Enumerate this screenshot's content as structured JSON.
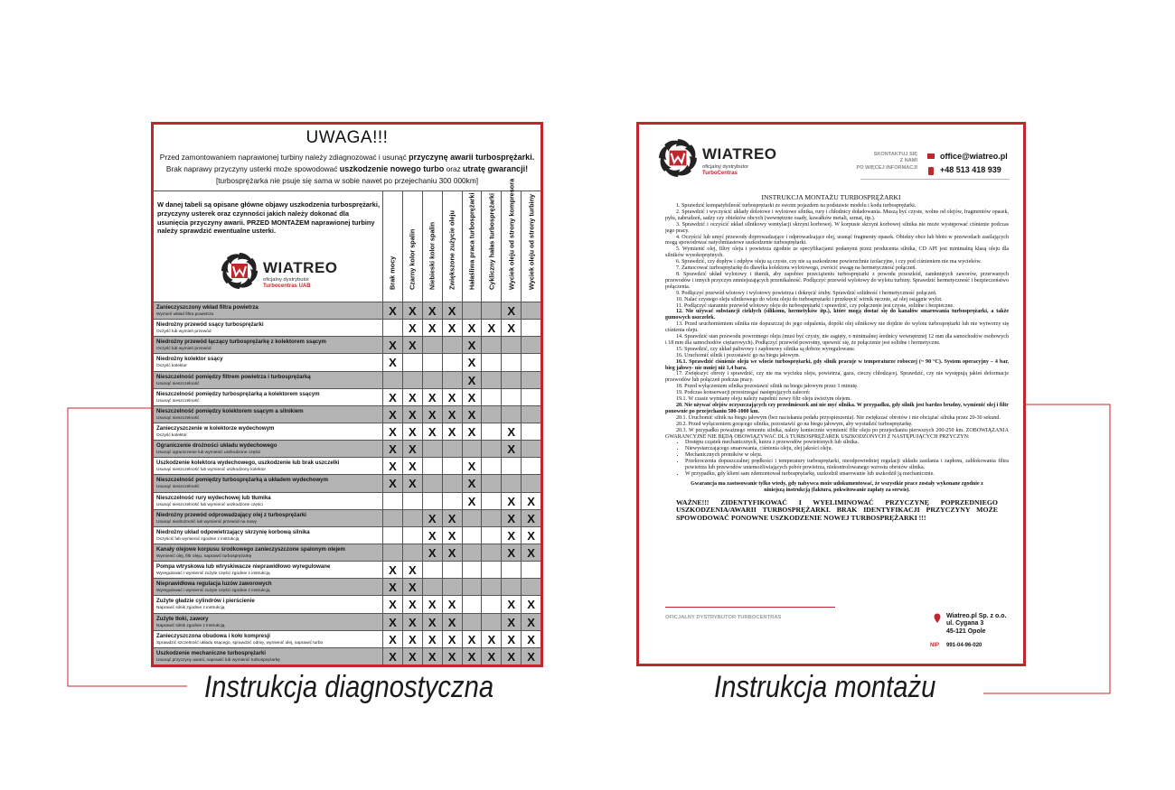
{
  "left_document": {
    "title": "UWAGA!!!",
    "intro": [
      [
        {
          "text": "Przed zamontowaniem naprawionej turbiny należy zdiagnozować i usunąć",
          "bold": false
        },
        {
          "text": "przyczynę awarii turbosprężarki.",
          "bold": true
        }
      ],
      [
        {
          "text": "Brak naprawy przyczyny usterki może spowodować",
          "bold": false
        },
        {
          "text": "uszkodzenie nowego turbo",
          "bold": true
        },
        {
          "text": "oraz",
          "bold": false
        },
        {
          "text": "utratę gwarancji!",
          "bold": true
        }
      ],
      [
        {
          "text": "[turbosprężarka nie psuje się sama w sobie nawet po przejechaniu 300 000km]",
          "bold": false
        }
      ]
    ],
    "description": "W danej tabeli są opisane główne objawy uszkodzenia turbosprężarki, przyczyny usterek oraz czynności jakich należy dokonać dla usunięcia przyczyny awarii. PRZED MONTAŻEM naprawionej turbiny należy sprawdzić ewentualne usterki.",
    "logo": {
      "name": "WIATREO",
      "tagline": "oficjalny dystrybutor",
      "company": "Turbocentras UAB"
    },
    "table": {
      "columns": [
        "Brak mocy",
        "Czarny kolor spalin",
        "Niebieski kolor spalin",
        "Zwiększone zużycie oleju",
        "Hałaśliwa praca turbosprężarki",
        "Cykliczny hałas turbosprężarki",
        "Wyciek oleju od strony kompresora",
        "Wyciek oleju od strony turbiny"
      ],
      "rows": [
        {
          "cause": "Zanieczyszczony wkład filtra powietrza",
          "remedy": "Wymień wkład filtra powietrza",
          "cells": [
            "X",
            "X",
            "X",
            "X",
            null,
            null,
            "X",
            null
          ]
        },
        {
          "cause": "Niedrożny przewód ssący turbosprężarki",
          "remedy": "Oczyść lub wymień przewód",
          "cells": [
            null,
            "X",
            "X",
            "X",
            "X",
            "X",
            "X",
            null
          ]
        },
        {
          "cause": "Niedrożny przewód łączący turbosprężarkę z kolektorem ssącym",
          "remedy": "Oczyść lub wymień przewód",
          "cells": [
            "X",
            "X",
            null,
            null,
            "X",
            null,
            null,
            null
          ]
        },
        {
          "cause": "Niedrożny kolektor ssący",
          "remedy": "Oczyść kolektor",
          "cells": [
            "X",
            null,
            null,
            null,
            "X",
            null,
            null,
            null
          ]
        },
        {
          "cause": "Nieszczelność pomiędzy filtrem powietrza i turbosprężarką",
          "remedy": "Usunąć nieszczelność",
          "cells": [
            null,
            null,
            null,
            null,
            "X",
            null,
            null,
            null
          ]
        },
        {
          "cause": "Nieszczelność pomiędzy turbosprężarką a kolektorem ssącym",
          "remedy": "Usunąć nieszczelność",
          "cells": [
            "X",
            "X",
            "X",
            "X",
            "X",
            null,
            null,
            null
          ]
        },
        {
          "cause": "Nieszczelność pomiędzy kolektorem ssącym a silnikiem",
          "remedy": "Usunąć nieszczelność",
          "cells": [
            "X",
            "X",
            "X",
            "X",
            "X",
            null,
            null,
            null
          ]
        },
        {
          "cause": "Zanieczyszczenie w kolektorze wydechowym",
          "remedy": "Oczyść kolektor",
          "cells": [
            "X",
            "X",
            "X",
            "X",
            "X",
            null,
            "X",
            null
          ]
        },
        {
          "cause": "Ograniczenie drożności układu wydechowego",
          "remedy": "Usunąć ograniczenie lub wymienić uszkodzone części",
          "cells": [
            "X",
            "X",
            null,
            null,
            null,
            null,
            "X",
            null
          ]
        },
        {
          "cause": "Uszkodzenie kolektora wydechowego, uszkodzenie lub brak uszczelki",
          "remedy": "Usunąć nieszczelność lub wymienić uszkodzony kolektor",
          "cells": [
            "X",
            "X",
            null,
            null,
            "X",
            null,
            null,
            null
          ]
        },
        {
          "cause": "Nieszczelność pomiędzy turbosprężarką a układem wydechowym",
          "remedy": "Usunąć nieszczelność",
          "cells": [
            "X",
            "X",
            null,
            null,
            "X",
            null,
            null,
            null
          ]
        },
        {
          "cause": "Nieszczelność rury wydechowej lub tłumika",
          "remedy": "Usunąć nieszczelność lub wymienić uszkodzone części",
          "cells": [
            null,
            null,
            null,
            null,
            "X",
            null,
            "X",
            "X"
          ]
        },
        {
          "cause": "Niedrożny przewód odprowadzający olej z turbosprężarki",
          "remedy": "Usunąć niedrożność lub wymienić przewód na nowy",
          "cells": [
            null,
            null,
            "X",
            "X",
            null,
            null,
            "X",
            "X"
          ]
        },
        {
          "cause": "Niedrożny układ odpowietrzający skrzynię korbową silnika",
          "remedy": "Oczyścić lub wymienić zgodnie z instrukcją",
          "cells": [
            null,
            null,
            "X",
            "X",
            null,
            null,
            "X",
            "X"
          ]
        },
        {
          "cause": "Kanały olejowe korpusu środkowego zanieczyszczone spalonym olejem",
          "remedy": "Wymienić olej, filtr oleju, naprawić turbosprężarkę",
          "cells": [
            null,
            null,
            "X",
            "X",
            null,
            null,
            "X",
            "X"
          ]
        },
        {
          "cause": "Pompa wtryskowa lub wtryskiwacze nieprawidłowo wyregulowane",
          "remedy": "Wyregulować i wymienić zużyte części zgodnie z instrukcją",
          "cells": [
            "X",
            "X",
            null,
            null,
            null,
            null,
            null,
            null
          ]
        },
        {
          "cause": "Nieprawidłowa regulacja luzów zaworowych",
          "remedy": "Wyregulować i wymienić zużyte części zgodnie z instrukcją",
          "cells": [
            "X",
            "X",
            null,
            null,
            null,
            null,
            null,
            null
          ]
        },
        {
          "cause": "Zużyte gładzie cylindrów i pierścienie",
          "remedy": "Naprawić silnik zgodnie z instrukcją",
          "cells": [
            "X",
            "X",
            "X",
            "X",
            null,
            null,
            "X",
            "X"
          ]
        },
        {
          "cause": "Zużyte tłoki, zawory",
          "remedy": "Naprawić silnik zgodnie z instrukcją",
          "cells": [
            "X",
            "X",
            "X",
            "X",
            null,
            null,
            "X",
            "X"
          ]
        },
        {
          "cause": "Zanieczyszczona obudowa i koło kompresji",
          "remedy": "Sprawdzić szczelność układu ssącego, sprawdzić odmę, wymienić olej, naprawić turbo",
          "cells": [
            "X",
            "X",
            "X",
            "X",
            "X",
            "X",
            "X",
            "X"
          ]
        },
        {
          "cause": "Uszkodzenie mechaniczne turbosprężarki",
          "remedy": "Usunąć przyczyny awarii, naprawić lub wymienić turbosprężarkę",
          "cells": [
            "X",
            "X",
            "X",
            "X",
            "X",
            "X",
            "X",
            "X"
          ]
        }
      ]
    }
  },
  "right_document": {
    "logo": {
      "name": "WIATREO",
      "tagline": "oficjalny dystrybutor",
      "company": "TurboCentras"
    },
    "contact": {
      "prompt": [
        "SKONTAKTUJ SIĘ",
        "Z NAMI",
        "PO WIĘCEJ INFORMACJI"
      ],
      "email": "office@wiatreo.pl",
      "phone": "+48 513 418 939"
    },
    "title": "INSTRUKCJA MONTAŻU TURBOSPRĘŻARKI",
    "items": [
      {
        "num": "1.",
        "text": "Sprawdzić kompatybilność turbosprężarki ze swoim pojazdem na podstawie modelu i kodu turbosprężarki.",
        "bold": false
      },
      {
        "num": "2.",
        "text": "Sprawdzić i wyczyścić układy dolotowe i wylotowe silnika, rury i chłodnicy doładowania. Muszą być czyste, wolne od olejów, fragmentów opasek, pyłu, zabrudzeń, sadzy czy obiektów obcych (wewnętrzne osady, kawałków metali, szmat, itp.).",
        "bold": false
      },
      {
        "num": "3.",
        "text": "Sprawdzić i oczyścić układ silnikowy wentylacji skrzyni korbowej. W korpusie skrzyni korbowej silnika nie może występować ciśnienie podczas jego pracy.",
        "bold": false
      },
      {
        "num": "4.",
        "text": "Oczyścić lub umyć przewody doprowadzające i odprowadzające olej, usunąć fragmenty opasek. Obiekty obce lub błoto w przewodach zasilających mogą spowodować natychmiastowe uszkodzenie turbosprężarki.",
        "bold": false
      },
      {
        "num": "5.",
        "text": "Wymienić olej, filtry oleju i powietrza zgodnie ze specyfikacjami podanymi przez producenta silnika, CD API jest minimalną klasą oleju dla silników wysokoprężnych.",
        "bold": false
      },
      {
        "num": "6.",
        "text": "Sprawdzić, czy dopływ i odpływ oleju są czyste, czy nie są uszkodzone powierzchnie izolacyjne, i czy pod ciśnieniem nie ma wycieków.",
        "bold": false
      },
      {
        "num": "7.",
        "text": "Zamocować turbosprężarkę do dławika kolektora wylotowego, zwrócić uwagę na hermetyczność połączeń.",
        "bold": false
      },
      {
        "num": "8.",
        "text": "Sprawdzić układ wylotowy i tłumik, aby zapobiec przeciążeniu turbosprężarki z powodu przeszkód, zamkniętych zaworów, przerwanych przewodów i innych przyczyn zmniejszających przenikalność. Podłączyć przewód wylotowy do wylotu turbiny. Sprawdzić hermetyczność i bezpieczeństwo połączenia.",
        "bold": false
      },
      {
        "num": "9.",
        "text": "Podłączyć przewód wlotowy i wylotowy powietrza i dokręcić śruby. Sprawdzić solidność i hermetyczność połączeń.",
        "bold": false
      },
      {
        "num": "10.",
        "text": "Nalać czystego oleju silnikowego do wlotu oleju do turbosprężarki i przekręcić wirnik ręcznie, aż olej osiągnie wylot.",
        "bold": false
      },
      {
        "num": "11.",
        "text": "Podłączyć starannie przewód wlotowy oleju do turbosprężarki i sprawdzić, czy połączenie jest czyste, solidne i bezpieczne.",
        "bold": false
      },
      {
        "num": "12.",
        "text": "Nie używać substancji ciekłych (silikonu, hermetyków itp.), które mogą dostać się do kanałów smarowania turbosprężarki, a także gumowych uszczelek.",
        "bold": true
      },
      {
        "num": "13.",
        "text": "Przed uruchomieniem silnika nie dopuszczaj do jego odpalenia, dopóki olej silnikowy nie dojdzie do wylotu turbosprężarki lub nie wytworzy się ciśnienia oleju.",
        "bold": false
      },
      {
        "num": "14.",
        "text": "Sprawdzić stan przewodu powrotnego oleju (musi być czysty, nie zagięty, o minimalnej średnicy wewnętrznej 12 mm dla samochodów osobowych i 18 mm dla samochodów ciężarowych). Podłączyć przewód powrotny, upewnić się, że połączenie jest solidne i hermetyczne.",
        "bold": false
      },
      {
        "num": "15.",
        "text": "Sprawdzić, czy układ paliwowy i zapłonowy silnika są dobrze wyregulowane.",
        "bold": false
      },
      {
        "num": "16.",
        "text": "Uruchomić silnik i pozostawić go na biegu jałowym.",
        "bold": false
      },
      {
        "num": "16.1.",
        "text": "Sprawdzić ciśnienie oleju we wlocie turbosprężarki, gdy silnik pracuje w temperaturze roboczej (~ 90 °C). System operacyjny – 4 bar, bieg jałowy- nie mniej niż 1,4 bara.",
        "bold": true
      },
      {
        "num": "17.",
        "text": "Zwiększyć obroty i sprawdzić, czy nie ma wycieku oleju, powietrza, gazu, cieczy chłodzącej. Sprawdzić, czy nie występują jakieś deformacje przewodów lub połączeń podczas pracy.",
        "bold": false
      },
      {
        "num": "18.",
        "text": "Przed wyłączeniem silnika pozostawić silnik na biegu jałowym przez 1 minutę.",
        "bold": false
      },
      {
        "num": "19.",
        "text": "Podczas konserwacji przestrzegać następujących zaleceń:",
        "bold": false
      },
      {
        "num": "19.1.",
        "text": "W czasie wymiany oleju należy napełnić nowy filtr oleju świeżym olejem.",
        "bold": false
      },
      {
        "num": "20.",
        "text": "Nie używać olejów oczyszczających czy przedmieszek ani nie myć silnika. W przypadku, gdy silnik jest bardzo brudny, wymienić olej i filtr ponownie po przejechaniu 500-1000 km.",
        "bold": true
      },
      {
        "num": "20.1.",
        "text": "Uruchomić silnik na biegu jałowym (bez naciskania pedału przyspieszenia). Nie zwiększać obrotów i nie obciążać silnika przez 20-30 sekund.",
        "bold": false
      },
      {
        "num": "20.2.",
        "text": "Przed wyłączeniem gorącego silnika, pozostawić go na biegu jałowym, aby wystudzić turbosprężarkę.",
        "bold": false
      },
      {
        "num": "20.3.",
        "text": "W przypadku poważnego remontu silnika, należy koniecznie wymienić filtr oleju po przejechaniu pierwszych 200-250 km. ZOBOWIĄZANIA GWARANCYJNE NIE BĘDĄ OBOWIĄZYWAĆ DLA TURBOSPRĘŻAREK USZKODZONYCH Z NASTĘPUJĄCYCH PRZYCZYN:",
        "bold": false
      }
    ],
    "bullets": [
      "Dostępu cząstek mechanicznych, kurzu z przewodów powietrznych lub silnika.",
      "Niewystarczającego smarowania, ciśnienia oleju, złej jakości oleju.",
      "Mechanicznych premików w oleju.",
      "Przekroczenia dopuszczalnej prędkości i temperatury turbosprężarki, nieodpowiedniej regulacji układu zasilania i zapłonu, zablokowania filtra powietrza lub przewodów uniemożliwiających pobór powietrza, niekontrolowanego wzrostu obrotów silnika.",
      "W przypadku, gdy klient sam zdemontował turbosprężarkę, uszkodził smarowanie lub uszkodził ją mechanicznie."
    ],
    "guarantee": "Gwarancja ma zastosowanie tylko wtedy, gdy nabywca może udokumentować, że wszystkie prace zostały wykonane zgodnie z niniejszą instrukcją (faktura, pokwitowanie zapłaty za serwis).",
    "warning": "WAŻNE!!! ZIDENTYFIKOWAĆ I WYELIMINOWAĆ PRZYCZYNĘ POPRZEDNIEGO USZKODZENIA/AWARII TURBOSPRĘŻARKI. BRAK IDENTYFIKACJI PRZYCZYNY MOŻE SPOWODOWAĆ PONOWNE USZKODZENIE NOWEJ TURBOSPRĘŻARKI !!!",
    "footer": {
      "distributor": "OFICJALNY DYSTRYBUTOR TURBOCENTRAS",
      "address": [
        "Wiatreo.pl Sp. z o.o.",
        "ul. Cygana 3",
        "45-121 Opole"
      ],
      "nip_label": "NIP",
      "nip": "991-04-96-020"
    }
  },
  "captions": {
    "left": "Instrukcja diagnostyczna",
    "right": "Instrukcja montażu"
  }
}
